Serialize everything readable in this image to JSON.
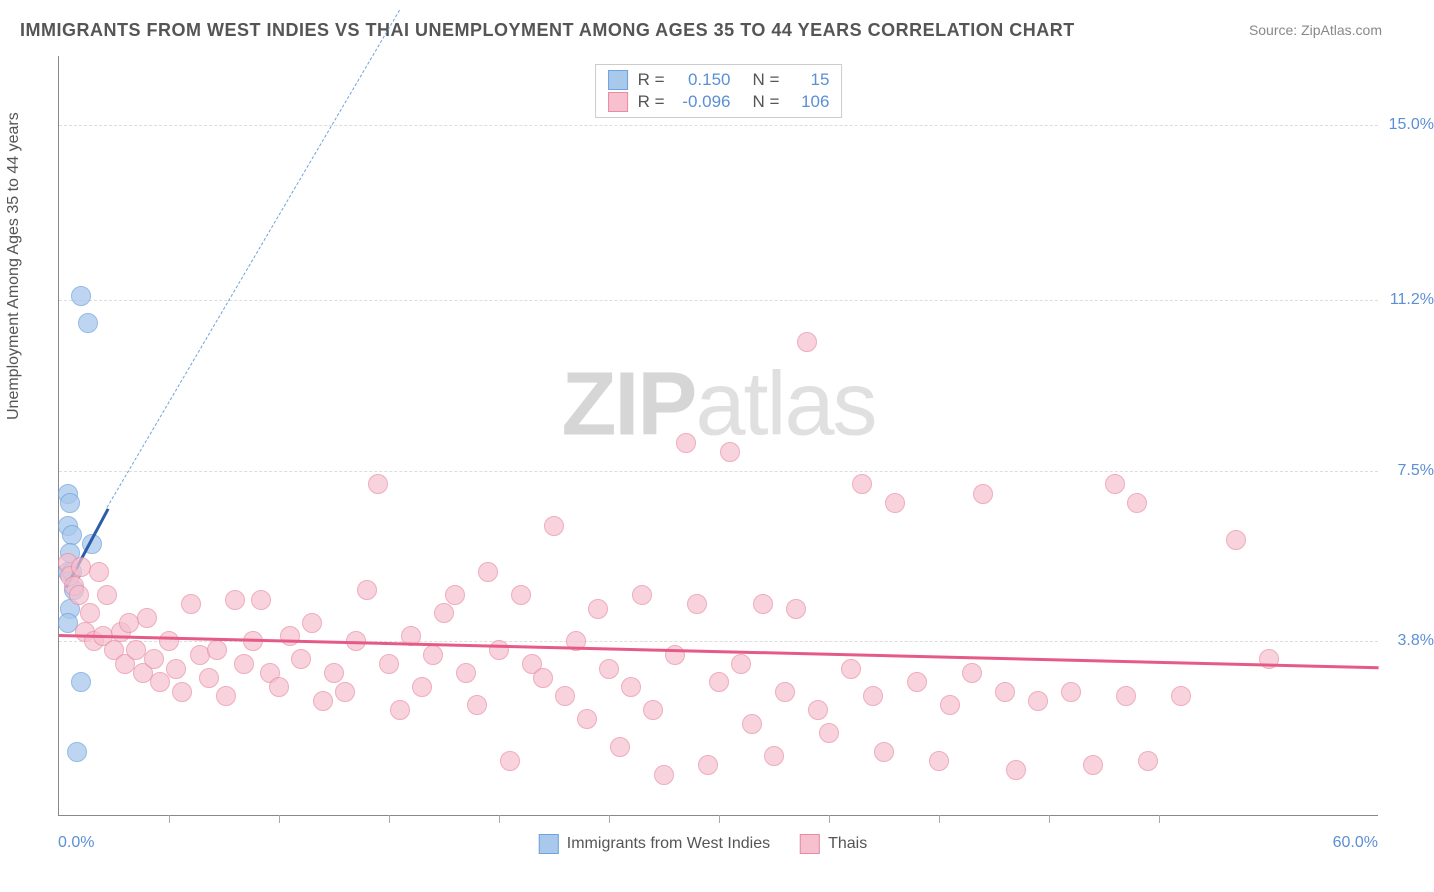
{
  "title": "IMMIGRANTS FROM WEST INDIES VS THAI UNEMPLOYMENT AMONG AGES 35 TO 44 YEARS CORRELATION CHART",
  "source": "Source: ZipAtlas.com",
  "watermark_bold": "ZIP",
  "watermark_light": "atlas",
  "ylabel": "Unemployment Among Ages 35 to 44 years",
  "chart": {
    "type": "scatter",
    "xlim": [
      0,
      60
    ],
    "ylim": [
      0,
      16.5
    ],
    "x_min_label": "0.0%",
    "x_max_label": "60.0%",
    "y_gridlines": [
      {
        "value": 3.8,
        "label": "3.8%"
      },
      {
        "value": 7.5,
        "label": "7.5%"
      },
      {
        "value": 11.2,
        "label": "11.2%"
      },
      {
        "value": 15.0,
        "label": "15.0%"
      }
    ],
    "x_ticks": [
      5,
      10,
      15,
      20,
      25,
      30,
      35,
      40,
      45,
      50
    ],
    "background_color": "#ffffff",
    "grid_color": "#dddddd",
    "axis_color": "#888888",
    "series": [
      {
        "name": "Immigrants from West Indies",
        "color_fill": "#a8c8ec",
        "color_stroke": "#6fa3dd",
        "marker_radius": 10,
        "marker_opacity": 0.75,
        "R": "0.150",
        "N": "15",
        "trend": {
          "x1": 0.3,
          "y1": 5.0,
          "x2": 2.2,
          "y2": 6.7,
          "color": "#2e5da8",
          "width": 2.5
        },
        "extrap": {
          "x1": 2.2,
          "y1": 6.7,
          "x2": 15.5,
          "y2": 17.5,
          "color": "#6fa3dd",
          "width": 1.5
        },
        "points": [
          [
            1.0,
            11.3
          ],
          [
            1.3,
            10.7
          ],
          [
            0.4,
            7.0
          ],
          [
            0.5,
            6.8
          ],
          [
            0.4,
            6.3
          ],
          [
            0.6,
            6.1
          ],
          [
            0.5,
            5.7
          ],
          [
            1.5,
            5.9
          ],
          [
            0.4,
            5.3
          ],
          [
            0.6,
            5.3
          ],
          [
            0.7,
            4.9
          ],
          [
            0.5,
            4.5
          ],
          [
            0.4,
            4.2
          ],
          [
            1.0,
            2.9
          ],
          [
            0.8,
            1.4
          ]
        ]
      },
      {
        "name": "Thais",
        "color_fill": "#f6c0ce",
        "color_stroke": "#e88ba3",
        "marker_radius": 10,
        "marker_opacity": 0.7,
        "R": "-0.096",
        "N": "106",
        "trend": {
          "x1": 0,
          "y1": 3.95,
          "x2": 60,
          "y2": 3.25,
          "color": "#e65a87",
          "width": 2.5
        },
        "points": [
          [
            0.4,
            5.5
          ],
          [
            0.5,
            5.2
          ],
          [
            0.7,
            5.0
          ],
          [
            0.9,
            4.8
          ],
          [
            1.0,
            5.4
          ],
          [
            1.2,
            4.0
          ],
          [
            1.4,
            4.4
          ],
          [
            1.6,
            3.8
          ],
          [
            1.8,
            5.3
          ],
          [
            2.0,
            3.9
          ],
          [
            2.2,
            4.8
          ],
          [
            2.5,
            3.6
          ],
          [
            2.8,
            4.0
          ],
          [
            3.0,
            3.3
          ],
          [
            3.2,
            4.2
          ],
          [
            3.5,
            3.6
          ],
          [
            3.8,
            3.1
          ],
          [
            4.0,
            4.3
          ],
          [
            4.3,
            3.4
          ],
          [
            4.6,
            2.9
          ],
          [
            5.0,
            3.8
          ],
          [
            5.3,
            3.2
          ],
          [
            5.6,
            2.7
          ],
          [
            6.0,
            4.6
          ],
          [
            6.4,
            3.5
          ],
          [
            6.8,
            3.0
          ],
          [
            7.2,
            3.6
          ],
          [
            7.6,
            2.6
          ],
          [
            8.0,
            4.7
          ],
          [
            8.4,
            3.3
          ],
          [
            8.8,
            3.8
          ],
          [
            9.2,
            4.7
          ],
          [
            9.6,
            3.1
          ],
          [
            10.0,
            2.8
          ],
          [
            10.5,
            3.9
          ],
          [
            11.0,
            3.4
          ],
          [
            11.5,
            4.2
          ],
          [
            12.0,
            2.5
          ],
          [
            12.5,
            3.1
          ],
          [
            13.0,
            2.7
          ],
          [
            13.5,
            3.8
          ],
          [
            14.0,
            4.9
          ],
          [
            14.5,
            7.2
          ],
          [
            15.0,
            3.3
          ],
          [
            15.5,
            2.3
          ],
          [
            16.0,
            3.9
          ],
          [
            16.5,
            2.8
          ],
          [
            17.0,
            3.5
          ],
          [
            17.5,
            4.4
          ],
          [
            18.0,
            4.8
          ],
          [
            18.5,
            3.1
          ],
          [
            19.0,
            2.4
          ],
          [
            19.5,
            5.3
          ],
          [
            20.0,
            3.6
          ],
          [
            20.5,
            1.2
          ],
          [
            21.0,
            4.8
          ],
          [
            21.5,
            3.3
          ],
          [
            22.0,
            3.0
          ],
          [
            22.5,
            6.3
          ],
          [
            23.0,
            2.6
          ],
          [
            23.5,
            3.8
          ],
          [
            24.0,
            2.1
          ],
          [
            24.5,
            4.5
          ],
          [
            25.0,
            3.2
          ],
          [
            25.5,
            1.5
          ],
          [
            26.0,
            2.8
          ],
          [
            26.5,
            4.8
          ],
          [
            27.0,
            2.3
          ],
          [
            27.5,
            0.9
          ],
          [
            28.0,
            3.5
          ],
          [
            28.5,
            8.1
          ],
          [
            29.0,
            4.6
          ],
          [
            29.5,
            1.1
          ],
          [
            30.0,
            2.9
          ],
          [
            30.5,
            7.9
          ],
          [
            31.0,
            3.3
          ],
          [
            31.5,
            2.0
          ],
          [
            32.0,
            4.6
          ],
          [
            32.5,
            1.3
          ],
          [
            33.0,
            2.7
          ],
          [
            33.5,
            4.5
          ],
          [
            34.0,
            10.3
          ],
          [
            34.5,
            2.3
          ],
          [
            35.0,
            1.8
          ],
          [
            36.0,
            3.2
          ],
          [
            36.5,
            7.2
          ],
          [
            37.0,
            2.6
          ],
          [
            37.5,
            1.4
          ],
          [
            38.0,
            6.8
          ],
          [
            39.0,
            2.9
          ],
          [
            40.0,
            1.2
          ],
          [
            40.5,
            2.4
          ],
          [
            41.5,
            3.1
          ],
          [
            42.0,
            7.0
          ],
          [
            43.0,
            2.7
          ],
          [
            43.5,
            1.0
          ],
          [
            44.5,
            2.5
          ],
          [
            46.0,
            2.7
          ],
          [
            47.0,
            1.1
          ],
          [
            48.0,
            7.2
          ],
          [
            48.5,
            2.6
          ],
          [
            49.0,
            6.8
          ],
          [
            49.5,
            1.2
          ],
          [
            51.0,
            2.6
          ],
          [
            53.5,
            6.0
          ],
          [
            55.0,
            3.4
          ]
        ]
      }
    ]
  },
  "legend": {
    "r_label": "R =",
    "n_label": "N ="
  }
}
